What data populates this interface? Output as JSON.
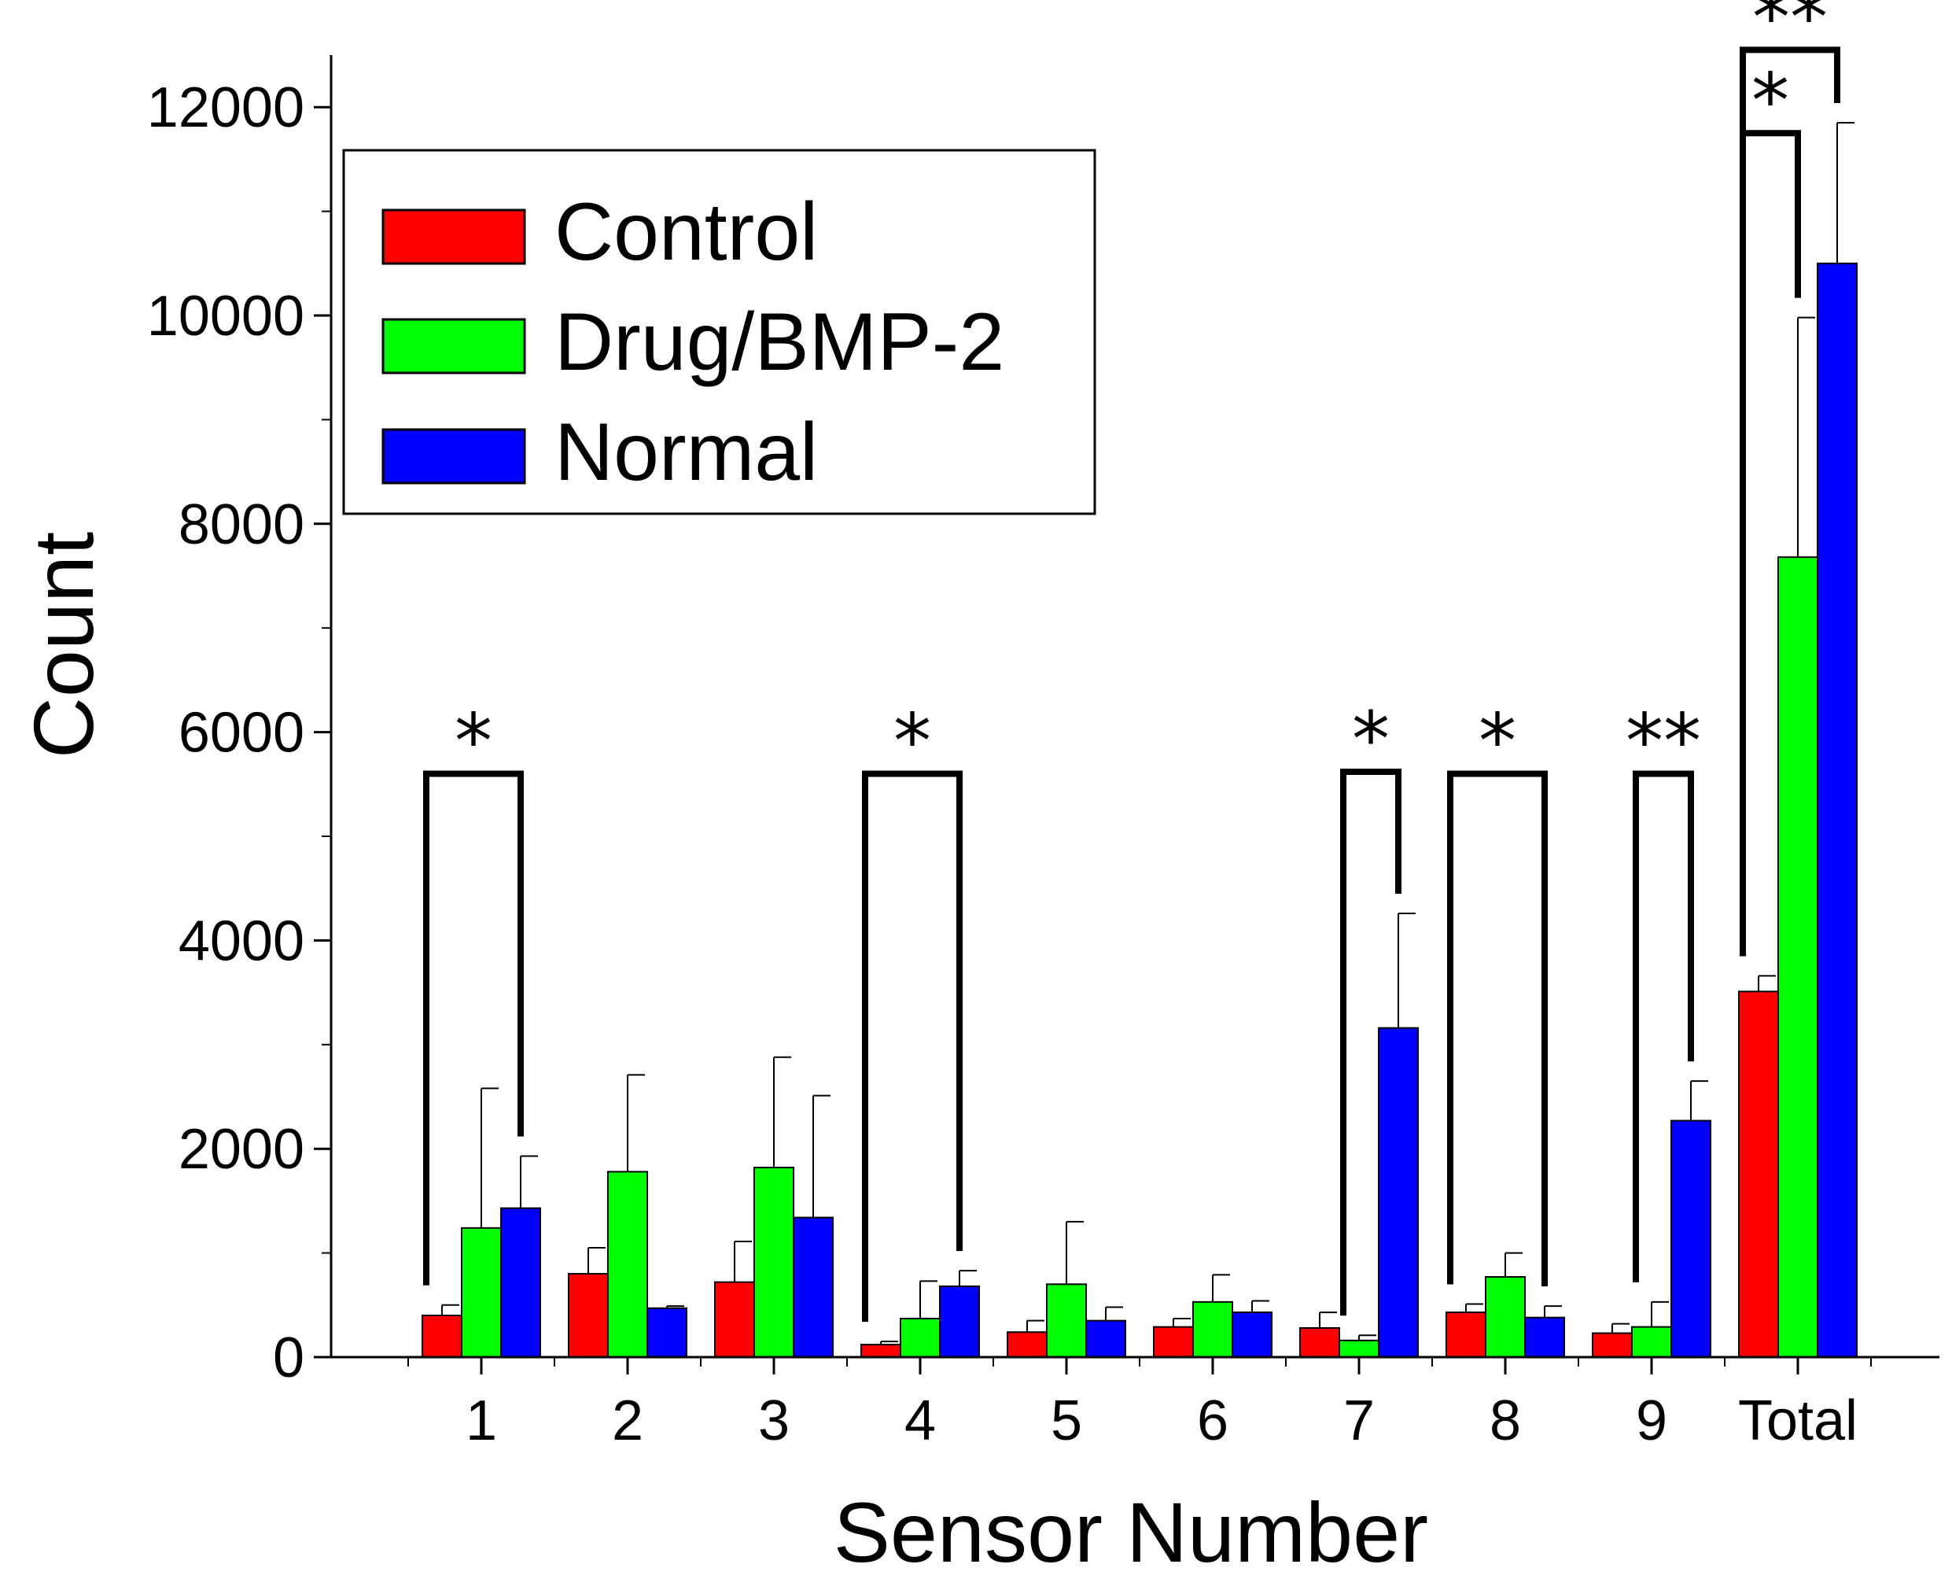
{
  "chart_data": {
    "type": "bar",
    "title": "",
    "xlabel": "Sensor Number",
    "ylabel": "Count",
    "ylim": [
      0,
      12500
    ],
    "yticks": [
      0,
      2000,
      4000,
      6000,
      8000,
      10000,
      12000
    ],
    "categories": [
      "1",
      "2",
      "3",
      "4",
      "5",
      "6",
      "7",
      "8",
      "9",
      "Total"
    ],
    "series": [
      {
        "name": "Control",
        "color": "#ff0000",
        "values": [
          400,
          800,
          720,
          120,
          240,
          290,
          280,
          430,
          230,
          3510
        ],
        "errors": [
          100,
          250,
          390,
          30,
          110,
          80,
          150,
          80,
          90,
          150
        ]
      },
      {
        "name": "Drug/BMP-2",
        "color": "#00ff00",
        "values": [
          1240,
          1780,
          1820,
          370,
          700,
          530,
          160,
          770,
          290,
          7680
        ],
        "errors": [
          1340,
          930,
          1060,
          360,
          600,
          260,
          50,
          230,
          240,
          2300
        ]
      },
      {
        "name": "Normal",
        "color": "#0000ff",
        "values": [
          1430,
          470,
          1340,
          680,
          350,
          430,
          3160,
          380,
          2270,
          10500
        ],
        "errors": [
          500,
          20,
          1170,
          150,
          130,
          110,
          1100,
          110,
          380,
          1350
        ]
      }
    ],
    "legend": {
      "position": "top-left",
      "entries": [
        "Control",
        "Drug/BMP-2",
        "Normal"
      ]
    },
    "annotations": [
      {
        "category": "1",
        "compare": [
          "Control",
          "Normal"
        ],
        "label": "*"
      },
      {
        "category": "4",
        "compare": [
          "Control",
          "Normal"
        ],
        "label": "*"
      },
      {
        "category": "7",
        "compare": [
          "Drug/BMP-2",
          "Normal"
        ],
        "label": "*"
      },
      {
        "category": "8",
        "compare": [
          "Control",
          "Normal"
        ],
        "label": "*"
      },
      {
        "category": "9",
        "compare": [
          "Drug/BMP-2",
          "Normal"
        ],
        "label": "**"
      },
      {
        "category": "Total",
        "compare": [
          "Control",
          "Drug/BMP-2"
        ],
        "label": "*"
      },
      {
        "category": "Total",
        "compare": [
          "Control",
          "Normal"
        ],
        "label": "**"
      }
    ]
  }
}
